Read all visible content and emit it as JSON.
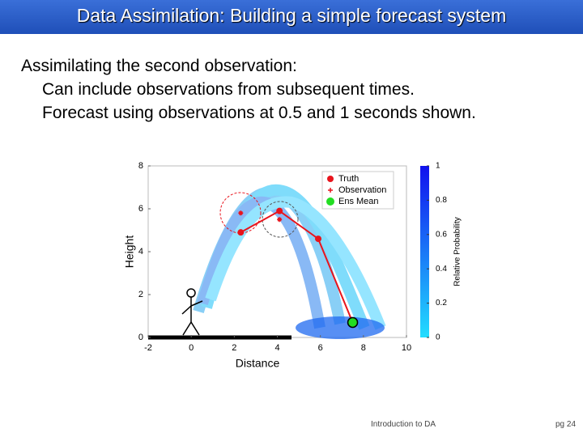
{
  "header": {
    "title": "Data Assimilation: Building a simple forecast system"
  },
  "body": {
    "heading": "Assimilating the second observation:",
    "bullets": [
      "Can include observations from subsequent times.",
      "Forecast using observations at 0.5 and 1 seconds shown."
    ]
  },
  "chart_data": {
    "type": "scatter",
    "xlabel": "Distance",
    "ylabel": "Height",
    "xlim": [
      -2,
      10
    ],
    "ylim": [
      0,
      8
    ],
    "xticks": [
      -2,
      0,
      2,
      4,
      6,
      8,
      10
    ],
    "yticks": [
      0,
      2,
      4,
      6,
      8
    ],
    "legend": "upper right",
    "series": [
      {
        "name": "Truth",
        "color": "#e8141c",
        "x": [
          2.3,
          4.1,
          5.9,
          7.5
        ],
        "values": [
          4.9,
          5.9,
          4.6,
          0.7
        ]
      },
      {
        "name": "Observation",
        "color": "#e8141c",
        "x": [
          2.3,
          4.1
        ],
        "values": [
          5.8,
          5.5
        ]
      },
      {
        "name": "Ens Mean",
        "color": "#22dd22",
        "x": [
          7.5
        ],
        "values": [
          0.7
        ]
      }
    ],
    "colorbar": {
      "label": "Relative Probability",
      "lim": [
        0,
        1
      ],
      "ticks": [
        0,
        0.2,
        0.4,
        0.6,
        0.8,
        1
      ]
    }
  },
  "footer": {
    "text": "Introduction to DA",
    "page": "pg 24"
  }
}
